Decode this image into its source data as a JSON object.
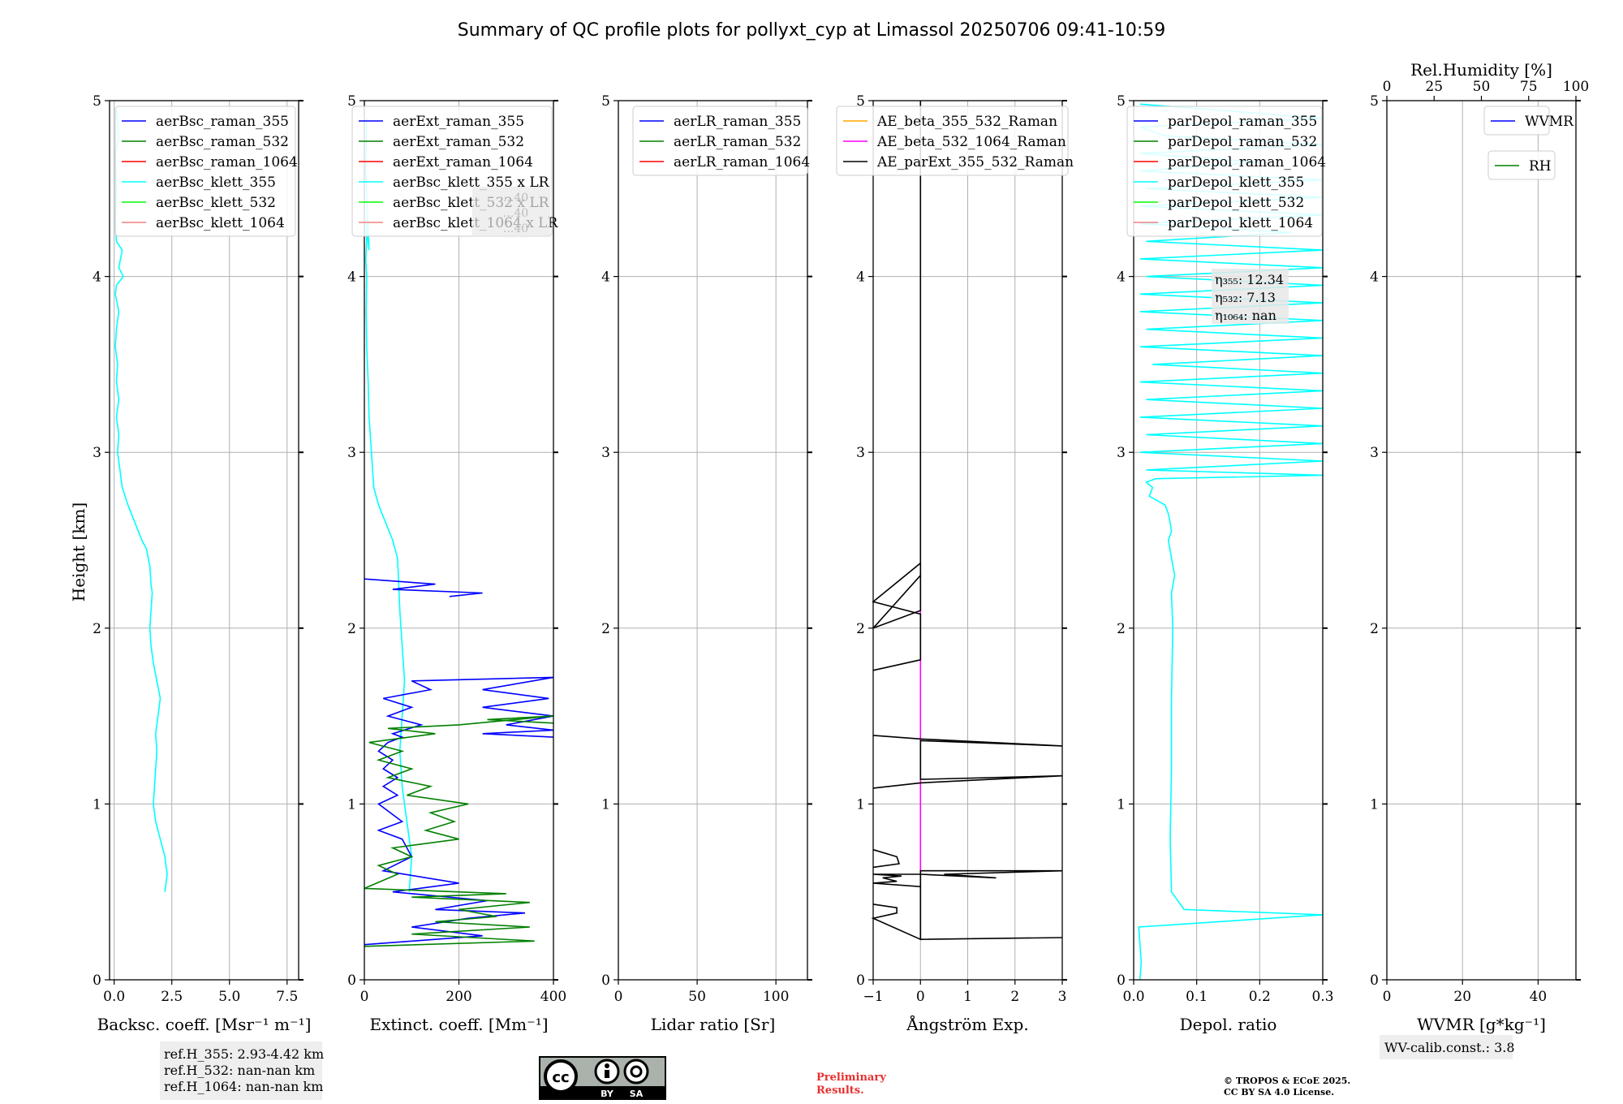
{
  "title": "Summary of QC profile plots for pollyxt_cyp at Limassol 20250706 09:41-10:59",
  "y_label": "Height [km]",
  "colors": {
    "blue": "#0000ff",
    "green": "#008000",
    "red": "#ff0000",
    "cyan": "#00ffff",
    "lime": "#00ff00",
    "pink": "#f08080",
    "orange": "#ffa500",
    "magenta": "#ff00ff",
    "black": "#000000",
    "grid": "#b0b0b0"
  },
  "chart_data": [
    {
      "type": "line",
      "xlabel": "Backsc. coeff. [Msr⁻¹ m⁻¹]",
      "xlim": [
        -0.2,
        8.0
      ],
      "ylim": [
        0,
        5
      ],
      "xticks": [
        0.0,
        2.5,
        5.0,
        7.5
      ],
      "xtick_labels": [
        "0.0",
        "2.5",
        "5.0",
        "7.5"
      ],
      "yticks": [
        0,
        1,
        2,
        3,
        4,
        5
      ],
      "legend": [
        {
          "label": "aerBsc_raman_355",
          "color": "blue"
        },
        {
          "label": "aerBsc_raman_532",
          "color": "green"
        },
        {
          "label": "aerBsc_raman_1064",
          "color": "red"
        },
        {
          "label": "aerBsc_klett_355",
          "color": "cyan"
        },
        {
          "label": "aerBsc_klett_532",
          "color": "lime"
        },
        {
          "label": "aerBsc_klett_1064",
          "color": "pink"
        }
      ],
      "series": [
        {
          "name": "aerBsc_klett_355",
          "color": "cyan",
          "x": [
            2.2,
            2.3,
            2.2,
            2.0,
            1.8,
            1.7,
            1.75,
            1.8,
            1.85,
            1.8,
            1.9,
            2.0,
            1.85,
            1.7,
            1.6,
            1.55,
            1.6,
            1.65,
            1.6,
            1.55,
            1.4,
            1.2,
            0.9,
            0.6,
            0.35,
            0.25,
            0.15,
            0.2,
            0.1,
            0.2,
            0.1,
            0.15,
            0.05,
            0.1,
            0.2,
            0.05,
            0.1,
            0.4,
            0.2,
            0.35,
            0.1,
            0.05,
            0.1,
            0.05,
            0.2,
            0.1
          ],
          "y": [
            0.5,
            0.6,
            0.7,
            0.8,
            0.9,
            1.0,
            1.1,
            1.2,
            1.3,
            1.4,
            1.5,
            1.6,
            1.7,
            1.8,
            1.9,
            2.0,
            2.1,
            2.2,
            2.25,
            2.35,
            2.45,
            2.5,
            2.6,
            2.7,
            2.8,
            2.9,
            3.0,
            3.1,
            3.2,
            3.3,
            3.4,
            3.5,
            3.6,
            3.7,
            3.8,
            3.9,
            3.95,
            4.0,
            4.05,
            4.15,
            4.2,
            4.3,
            4.5,
            4.7,
            4.8,
            4.95
          ]
        }
      ],
      "annotation": [
        "ref.H_355: 2.93-4.42 km",
        "ref.H_532: nan-nan km",
        "ref.H_1064: nan-nan km"
      ]
    },
    {
      "type": "line",
      "xlabel": "Extinct. coeff. [Mm⁻¹]",
      "xlim": [
        0,
        400
      ],
      "ylim": [
        0,
        5
      ],
      "xticks": [
        0,
        200,
        400
      ],
      "xtick_labels": [
        "0",
        "200",
        "400"
      ],
      "yticks": [
        0,
        1,
        2,
        3,
        4,
        5
      ],
      "legend": [
        {
          "label": "aerExt_raman_355",
          "color": "blue"
        },
        {
          "label": "aerExt_raman_532",
          "color": "green"
        },
        {
          "label": "aerExt_raman_1064",
          "color": "red"
        },
        {
          "label": "aerBsc_klett_355 x LR",
          "color": "cyan"
        },
        {
          "label": "aerBsc_klett_532 x LR",
          "color": "lime"
        },
        {
          "label": "aerBsc_klett_1064 x LR",
          "color": "pink"
        }
      ],
      "series": [
        {
          "name": "aerBsc_klett_355 x LR",
          "color": "cyan",
          "x": [
            95,
            100,
            90,
            80,
            75,
            80,
            85,
            80,
            75,
            72,
            70,
            60,
            45,
            30,
            20,
            15,
            10,
            8,
            5,
            4,
            5,
            3,
            5,
            4,
            10,
            3,
            5
          ],
          "y": [
            0.5,
            0.7,
            0.9,
            1.1,
            1.3,
            1.5,
            1.7,
            1.9,
            2.1,
            2.3,
            2.4,
            2.5,
            2.6,
            2.7,
            2.8,
            3.0,
            3.2,
            3.4,
            3.6,
            3.8,
            4.0,
            4.1,
            4.2,
            4.3,
            4.15,
            4.6,
            4.9
          ]
        },
        {
          "name": "aerExt_raman_355",
          "color": "blue",
          "x": [
            0,
            250,
            100,
            220,
            340,
            150,
            260,
            60,
            200,
            40,
            100,
            80,
            30,
            80,
            30,
            70,
            40,
            70,
            40,
            60,
            30,
            50,
            80,
            60,
            120,
            50,
            100,
            40,
            140,
            100,
            400,
            250,
            390,
            250,
            400,
            300,
            400,
            250,
            400
          ],
          "y": [
            0.2,
            0.25,
            0.3,
            0.35,
            0.38,
            0.4,
            0.45,
            0.5,
            0.55,
            0.62,
            0.7,
            0.8,
            0.85,
            0.9,
            1.0,
            1.05,
            1.1,
            1.15,
            1.2,
            1.25,
            1.3,
            1.35,
            1.38,
            1.4,
            1.45,
            1.5,
            1.55,
            1.6,
            1.65,
            1.7,
            1.72,
            1.65,
            1.6,
            1.55,
            1.5,
            1.45,
            1.42,
            1.4,
            1.38
          ]
        },
        {
          "name": "aerExt_raman_355_upper",
          "color": "blue",
          "x": [
            0,
            150,
            60,
            250,
            180
          ],
          "y": [
            2.28,
            2.25,
            2.22,
            2.2,
            2.18
          ]
        },
        {
          "name": "aerExt_raman_532",
          "color": "green",
          "x": [
            0,
            360,
            100,
            350,
            150,
            280,
            200,
            350,
            100,
            300,
            0,
            70,
            30,
            100,
            60,
            200,
            130,
            190,
            140,
            220,
            90,
            140,
            50,
            100,
            30,
            80,
            10,
            150,
            50,
            200,
            400,
            260,
            400
          ],
          "y": [
            0.19,
            0.22,
            0.26,
            0.3,
            0.33,
            0.36,
            0.4,
            0.44,
            0.47,
            0.49,
            0.52,
            0.6,
            0.65,
            0.7,
            0.75,
            0.8,
            0.85,
            0.9,
            0.95,
            1.0,
            1.05,
            1.1,
            1.15,
            1.2,
            1.25,
            1.3,
            1.35,
            1.4,
            1.43,
            1.45,
            1.5,
            1.48,
            1.46
          ]
        }
      ],
      "annotation_faded": [
        "...40",
        "...40",
        "...40"
      ]
    },
    {
      "type": "line",
      "xlabel": "Lidar ratio [Sr]",
      "xlim": [
        0,
        120
      ],
      "ylim": [
        0,
        5
      ],
      "xticks": [
        0,
        50,
        100
      ],
      "xtick_labels": [
        "0",
        "50",
        "100"
      ],
      "yticks": [
        0,
        1,
        2,
        3,
        4,
        5
      ],
      "legend": [
        {
          "label": "aerLR_raman_355",
          "color": "blue"
        },
        {
          "label": "aerLR_raman_532",
          "color": "green"
        },
        {
          "label": "aerLR_raman_1064",
          "color": "red"
        }
      ],
      "series": []
    },
    {
      "type": "line",
      "xlabel": "Ångström Exp.",
      "xlim": [
        -1,
        3
      ],
      "ylim": [
        0,
        5
      ],
      "xticks": [
        -1,
        0,
        1,
        2,
        3
      ],
      "xtick_labels": [
        "−1",
        "0",
        "1",
        "2",
        "3"
      ],
      "yticks": [
        0,
        1,
        2,
        3,
        4,
        5
      ],
      "legend": [
        {
          "label": "AE_beta_355_532_Raman",
          "color": "orange"
        },
        {
          "label": "AE_beta_532_1064_Raman",
          "color": "magenta"
        },
        {
          "label": "AE_parExt_355_532_Raman",
          "color": "black"
        }
      ],
      "series": [
        {
          "name": "AE_beta_532_1064_Raman",
          "color": "magenta",
          "x": [
            0,
            0
          ],
          "y": [
            0.23,
            2.37
          ]
        },
        {
          "name": "AE_parExt_355_532_Raman",
          "color": "black",
          "x": [
            3.0,
            0.0,
            0.0,
            -1.0,
            -0.5,
            -0.8,
            -0.4,
            -1.0,
            0.0,
            1.6,
            0.5,
            3.0,
            0.0,
            0.0,
            -1.0,
            -0.5,
            -0.5,
            -1.0
          ],
          "y": [
            0.24,
            0.23,
            0.53,
            0.55,
            0.56,
            0.58,
            0.59,
            0.6,
            0.6,
            0.58,
            0.6,
            0.62,
            0.62,
            0.23,
            0.35,
            0.38,
            0.41,
            0.43
          ]
        },
        {
          "name": "AE_parExt_355_532_Raman_mid",
          "color": "black",
          "x": [
            -1.0,
            0.0,
            3.0,
            0.0,
            0.0,
            3.0,
            0.0,
            -1.0
          ],
          "y": [
            1.09,
            1.12,
            1.16,
            1.14,
            1.36,
            1.33,
            1.37,
            1.39
          ]
        },
        {
          "name": "AE_parExt_355_532_Raman_low",
          "color": "black",
          "x": [
            -1.0,
            -0.5,
            -0.45,
            -1.0
          ],
          "y": [
            0.74,
            0.7,
            0.66,
            0.64
          ]
        },
        {
          "name": "AE_parExt_355_532_Raman_upper",
          "color": "black",
          "x": [
            -1.0,
            0.0,
            0.0,
            -1.0,
            0.0,
            0.0,
            -1.0,
            0.0,
            0.0
          ],
          "y": [
            1.76,
            1.82,
            2.08,
            2.15,
            2.37,
            2.3,
            2.0,
            2.1,
            5.0
          ]
        }
      ]
    },
    {
      "type": "line",
      "xlabel": "Depol. ratio",
      "xlim": [
        0,
        0.3
      ],
      "ylim": [
        0,
        5
      ],
      "xticks": [
        0.0,
        0.1,
        0.2,
        0.3
      ],
      "xtick_labels": [
        "0.0",
        "0.1",
        "0.2",
        "0.3"
      ],
      "yticks": [
        0,
        1,
        2,
        3,
        4,
        5
      ],
      "legend": [
        {
          "label": "parDepol_raman_355",
          "color": "blue"
        },
        {
          "label": "parDepol_raman_532",
          "color": "green"
        },
        {
          "label": "parDepol_raman_1064",
          "color": "red"
        },
        {
          "label": "parDepol_klett_355",
          "color": "cyan"
        },
        {
          "label": "parDepol_klett_532",
          "color": "lime"
        },
        {
          "label": "parDepol_klett_1064",
          "color": "pink"
        }
      ],
      "series": [
        {
          "name": "parDepol_klett_355",
          "color": "cyan",
          "x": [
            0.01,
            0.012,
            0.01,
            0.008,
            0.3,
            0.08,
            0.06,
            0.058,
            0.06,
            0.06,
            0.062,
            0.06,
            0.065,
            0.06,
            0.055,
            0.06,
            0.058,
            0.055,
            0.05,
            0.04,
            0.025,
            0.03,
            0.02,
            0.035,
            0.3,
            0.02,
            0.3,
            0.01,
            0.3,
            0.02,
            0.3,
            0.01,
            0.3,
            0.02,
            0.3,
            0.01,
            0.3,
            0.03,
            0.3,
            0.01,
            0.3,
            0.02,
            0.3,
            0.01,
            0.3,
            0.01,
            0.3,
            0.02,
            0.3,
            0.01,
            0.3,
            0.02,
            0.25,
            0.01,
            0.3,
            0.01,
            0.3,
            0.02,
            0.3,
            0.01,
            0.2,
            0.01,
            0.3,
            0.05,
            0.01,
            0.3,
            0.01
          ],
          "y": [
            0.0,
            0.1,
            0.2,
            0.3,
            0.37,
            0.4,
            0.5,
            0.8,
            1.2,
            1.6,
            2.0,
            2.2,
            2.3,
            2.4,
            2.5,
            2.55,
            2.6,
            2.65,
            2.7,
            2.72,
            2.75,
            2.8,
            2.83,
            2.85,
            2.87,
            2.9,
            2.95,
            3.0,
            3.05,
            3.1,
            3.15,
            3.2,
            3.25,
            3.3,
            3.35,
            3.4,
            3.45,
            3.5,
            3.55,
            3.6,
            3.65,
            3.7,
            3.75,
            3.8,
            3.85,
            3.9,
            3.95,
            4.0,
            4.05,
            4.1,
            4.15,
            4.2,
            4.25,
            4.3,
            4.35,
            4.4,
            4.45,
            4.5,
            4.55,
            4.6,
            4.65,
            4.7,
            4.75,
            4.8,
            4.85,
            4.9,
            4.98
          ]
        }
      ],
      "annotation": [
        "η₃₅₅: 12.34",
        "η₅₃₂: 7.13",
        "η₁₀₆₄: nan"
      ]
    },
    {
      "type": "line",
      "xlabel": "WVMR [g*kg⁻¹]",
      "xlim": [
        0,
        50
      ],
      "ylim": [
        0,
        5
      ],
      "xticks": [
        0,
        20,
        40
      ],
      "xtick_labels": [
        "0",
        "20",
        "40"
      ],
      "yticks": [
        0,
        1,
        2,
        3,
        4,
        5
      ],
      "top_axis_label": "Rel.Humidity [%]",
      "top_xlim": [
        0,
        100
      ],
      "top_xticks": [
        0,
        25,
        50,
        75,
        100
      ],
      "top_xtick_labels": [
        "0",
        "25",
        "50",
        "75",
        "100"
      ],
      "legend": [
        {
          "label": "WVMR",
          "color": "blue"
        }
      ],
      "legend2": [
        {
          "label": "RH",
          "color": "green"
        }
      ],
      "series": [],
      "annotation": [
        "WV-calib.const.: 3.8"
      ]
    }
  ],
  "license": {
    "cc": "cc",
    "by": "BY",
    "sa": "SA"
  },
  "preliminary": [
    "Preliminary",
    "Results."
  ],
  "copyright": [
    "© TROPOS & ECoE 2025.",
    "CC BY SA 4.0 License."
  ]
}
